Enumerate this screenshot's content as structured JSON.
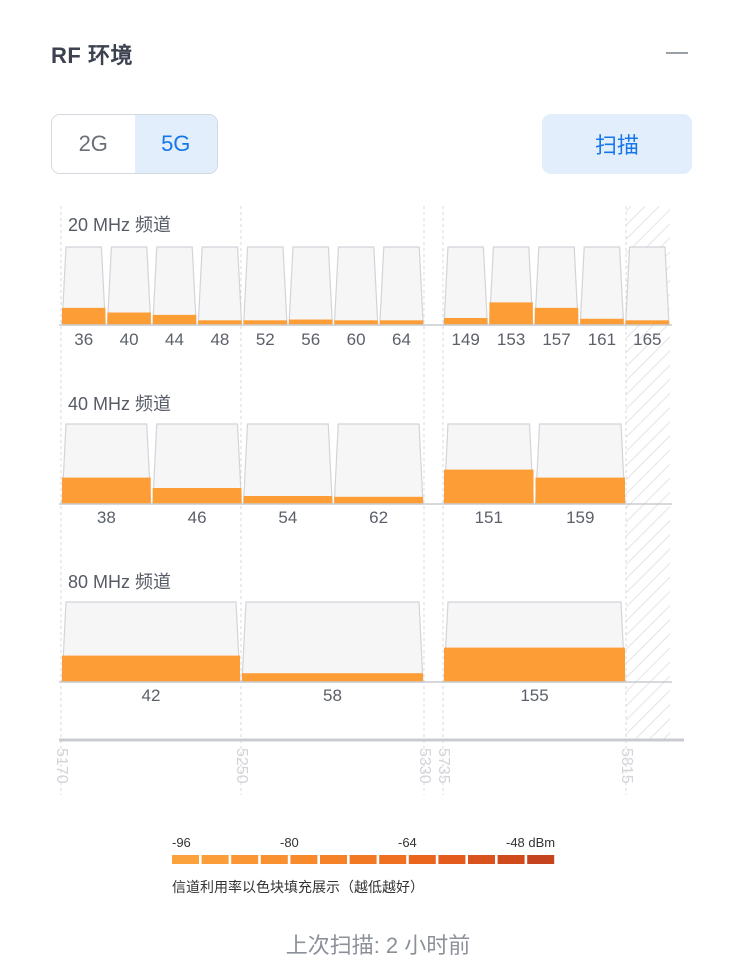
{
  "header": {
    "title": "RF 环境",
    "collapse_icon": "minus-icon"
  },
  "band_toggle": {
    "options": [
      "2G",
      "5G"
    ],
    "selected": "5G"
  },
  "scan_button": {
    "label": "扫描"
  },
  "colors": {
    "accent": "#1677e8",
    "accent_bg": "#e3eefc",
    "channel_fill": "#fd9d36",
    "channel_box": "#f6f6f7",
    "channel_border": "#d3d4d9"
  },
  "chart": {
    "frequency_ticks": [
      "5170",
      "5250",
      "5330",
      "5735",
      "5815"
    ],
    "rows": [
      {
        "label": "20 MHz 频道",
        "channels": [
          {
            "label": "36",
            "level": 0.22
          },
          {
            "label": "40",
            "level": 0.16
          },
          {
            "label": "44",
            "level": 0.13
          },
          {
            "label": "48",
            "level": 0.06
          },
          {
            "label": "52",
            "level": 0.06
          },
          {
            "label": "56",
            "level": 0.07
          },
          {
            "label": "60",
            "level": 0.06
          },
          {
            "label": "64",
            "level": 0.06
          },
          {
            "label": "149",
            "level": 0.09
          },
          {
            "label": "153",
            "level": 0.29
          },
          {
            "label": "157",
            "level": 0.22
          },
          {
            "label": "161",
            "level": 0.08
          },
          {
            "label": "165",
            "level": 0.06
          }
        ]
      },
      {
        "label": "40 MHz 频道",
        "channels": [
          {
            "label": "38",
            "level": 0.33
          },
          {
            "label": "46",
            "level": 0.2
          },
          {
            "label": "54",
            "level": 0.1
          },
          {
            "label": "62",
            "level": 0.09
          },
          {
            "label": "151",
            "level": 0.43
          },
          {
            "label": "159",
            "level": 0.33
          }
        ]
      },
      {
        "label": "80 MHz 频道",
        "channels": [
          {
            "label": "42",
            "level": 0.33
          },
          {
            "label": "58",
            "level": 0.11
          },
          {
            "label": "155",
            "level": 0.43
          }
        ]
      }
    ]
  },
  "legend": {
    "scale_labels": [
      "-96",
      "-80",
      "-64",
      "-48 dBm"
    ],
    "scale_colors": [
      "#fba23c",
      "#fb9d38",
      "#fa9734",
      "#f99130",
      "#f78a2c",
      "#f58228",
      "#f27924",
      "#ef7020",
      "#ea661e",
      "#e35c1e",
      "#d9531e",
      "#cf4b1e",
      "#c5431e"
    ],
    "note": "信道利用率以色块填充展示（越低越好）"
  },
  "last_scan": "上次扫描: 2 小时前"
}
